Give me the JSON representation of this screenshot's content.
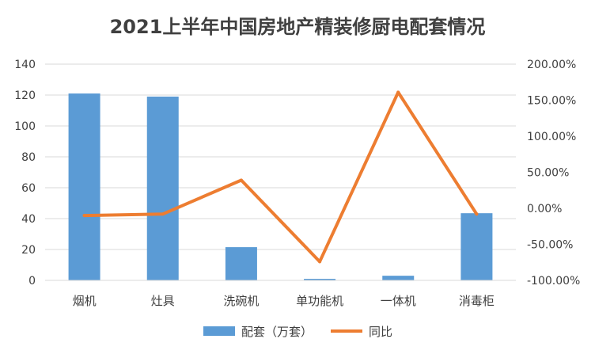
{
  "chart_data": {
    "type": "bar+line",
    "title": "2021上半年中国房地产精装修厨电配套情况",
    "categories": [
      "烟机",
      "灶具",
      "洗碗机",
      "单功能机",
      "一体机",
      "消毒柜"
    ],
    "series": [
      {
        "name": "配套（万套）",
        "type": "bar",
        "axis": "left",
        "color": "#5b9bd5",
        "values": [
          121,
          119,
          21.5,
          1,
          3,
          43.5
        ]
      },
      {
        "name": "同比",
        "type": "line",
        "axis": "right",
        "color": "#ed7d31",
        "values": [
          -0.1,
          -0.08,
          0.39,
          -0.74,
          1.61,
          -0.08
        ]
      }
    ],
    "y_left": {
      "min": 0,
      "max": 140,
      "step": 20,
      "ticks": [
        "0",
        "20",
        "40",
        "60",
        "80",
        "100",
        "120",
        "140"
      ]
    },
    "y_right": {
      "min": -1.0,
      "max": 2.0,
      "step": 0.5,
      "ticks": [
        "-100.00%",
        "-50.00%",
        "0.00%",
        "50.00%",
        "100.00%",
        "150.00%",
        "200.00%"
      ]
    },
    "grid": true,
    "legend": "bottom"
  }
}
